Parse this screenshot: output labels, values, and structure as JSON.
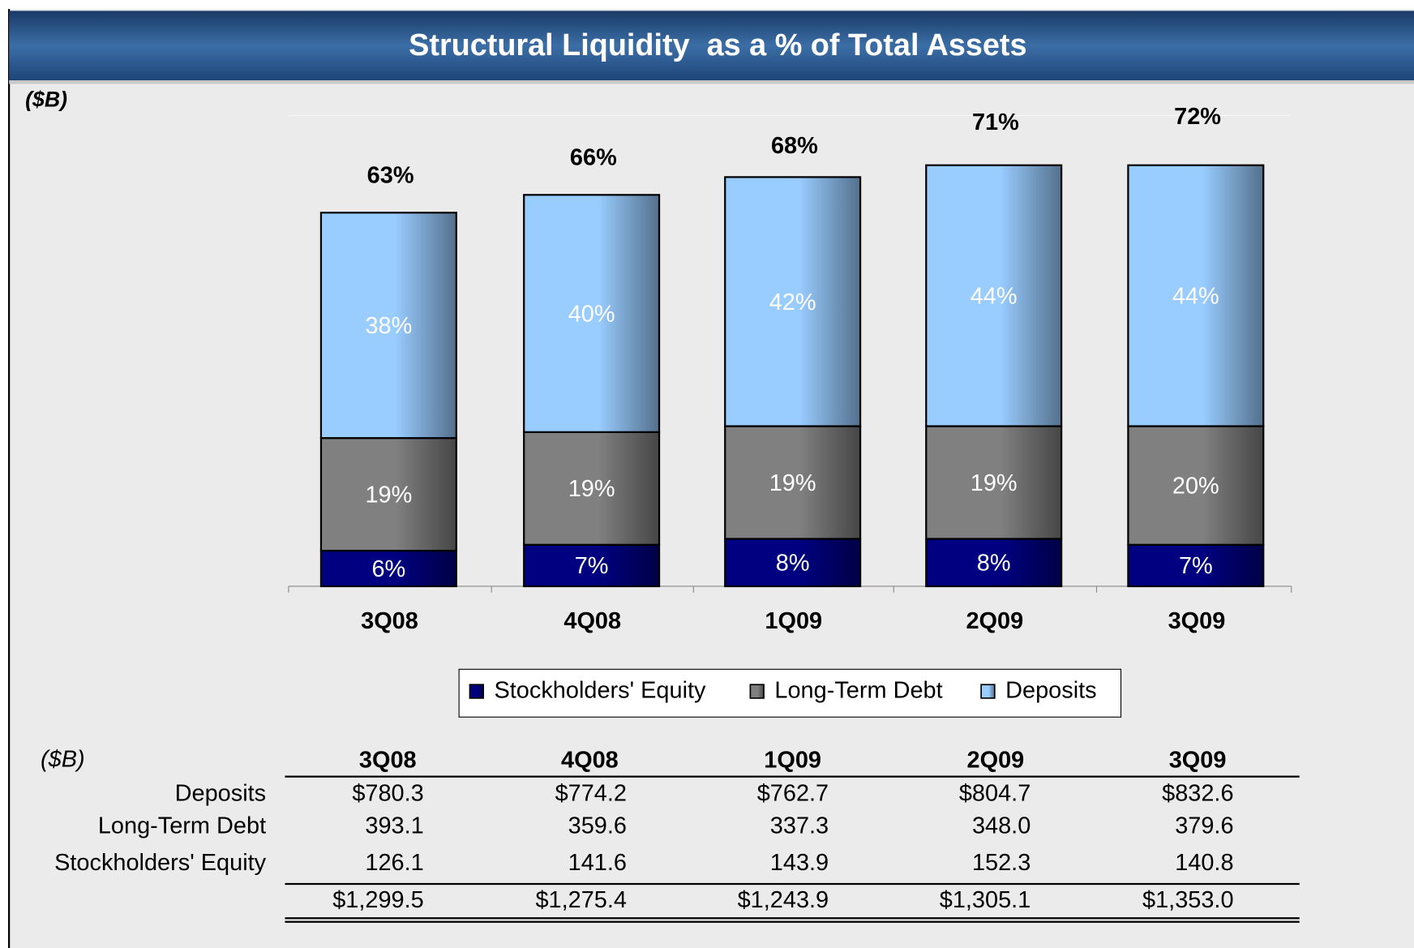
{
  "chart_data": {
    "type": "bar",
    "stacked": true,
    "title": "Structural Liquidity  as a % of Total Assets",
    "unit_label": "($B)",
    "categories": [
      "3Q08",
      "4Q08",
      "1Q09",
      "2Q09",
      "3Q09"
    ],
    "series": [
      {
        "name": "Stockholders' Equity",
        "color": "#000080",
        "values": [
          6,
          7,
          8,
          8,
          7
        ],
        "value_labels": [
          "6%",
          "7%",
          "8%",
          "8%",
          "7%"
        ]
      },
      {
        "name": "Long-Term Debt",
        "color": "#808080",
        "values": [
          19,
          19,
          19,
          19,
          20
        ],
        "value_labels": [
          "19%",
          "19%",
          "19%",
          "19%",
          "20%"
        ]
      },
      {
        "name": "Deposits",
        "color": "#99ccff",
        "values": [
          38,
          40,
          42,
          44,
          44
        ],
        "value_labels": [
          "38%",
          "40%",
          "42%",
          "44%",
          "44%"
        ]
      }
    ],
    "totals": [
      63,
      66,
      68,
      71,
      72
    ],
    "total_labels": [
      "63%",
      "66%",
      "68%",
      "71%",
      "72%"
    ],
    "ylim": [
      0,
      80
    ]
  },
  "table": {
    "unit": "($B)",
    "columns": [
      "3Q08",
      "4Q08",
      "1Q09",
      "2Q09",
      "3Q09"
    ],
    "rows": [
      {
        "label": "Deposits",
        "values": [
          "$780.3",
          "$774.2",
          "$762.7",
          "$804.7",
          "$832.6"
        ]
      },
      {
        "label": "Long-Term Debt",
        "values": [
          "393.1",
          "359.6",
          "337.3",
          "348.0",
          "379.6"
        ]
      },
      {
        "label": "Stockholders' Equity",
        "values": [
          "126.1",
          "141.6",
          "143.9",
          "152.3",
          "140.8"
        ]
      }
    ],
    "totals": [
      "$1,299.5",
      "$1,275.4",
      "$1,243.9",
      "$1,305.1",
      "$1,353.0"
    ]
  }
}
